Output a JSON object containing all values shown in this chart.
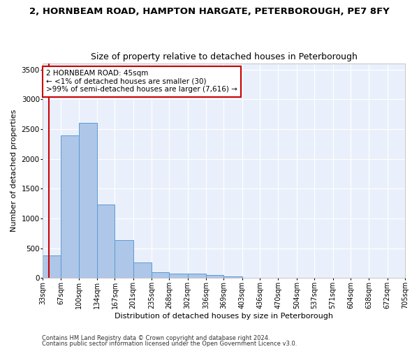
{
  "title_line1": "2, HORNBEAM ROAD, HAMPTON HARGATE, PETERBOROUGH, PE7 8FY",
  "title_line2": "Size of property relative to detached houses in Peterborough",
  "xlabel": "Distribution of detached houses by size in Peterborough",
  "ylabel": "Number of detached properties",
  "footnote1": "Contains HM Land Registry data © Crown copyright and database right 2024.",
  "footnote2": "Contains public sector information licensed under the Open Government Licence v3.0.",
  "annotation_title": "2 HORNBEAM ROAD: 45sqm",
  "annotation_line1": "← <1% of detached houses are smaller (30)",
  "annotation_line2": ">99% of semi-detached houses are larger (7,616) →",
  "property_size": 45,
  "bin_edges": [
    33,
    67,
    100,
    134,
    167,
    201,
    235,
    268,
    302,
    336,
    369,
    403,
    436,
    470,
    504,
    537,
    571,
    604,
    638,
    672,
    705
  ],
  "bar_heights": [
    380,
    2400,
    2600,
    1230,
    640,
    260,
    100,
    70,
    70,
    50,
    30,
    0,
    0,
    0,
    0,
    0,
    0,
    0,
    0,
    0
  ],
  "bar_color": "#aec6e8",
  "bar_edge_color": "#5b9bd5",
  "red_line_x": 45,
  "annotation_box_color": "#ffffff",
  "annotation_box_edge_color": "#cc0000",
  "ylim": [
    0,
    3600
  ],
  "yticks": [
    0,
    500,
    1000,
    1500,
    2000,
    2500,
    3000,
    3500
  ],
  "background_color": "#eaf0fb",
  "grid_color": "#ffffff",
  "title_fontsize": 9.5,
  "subtitle_fontsize": 9,
  "tick_label_fontsize": 7,
  "axis_label_fontsize": 8,
  "annotation_fontsize": 7.5,
  "footnote_fontsize": 6
}
